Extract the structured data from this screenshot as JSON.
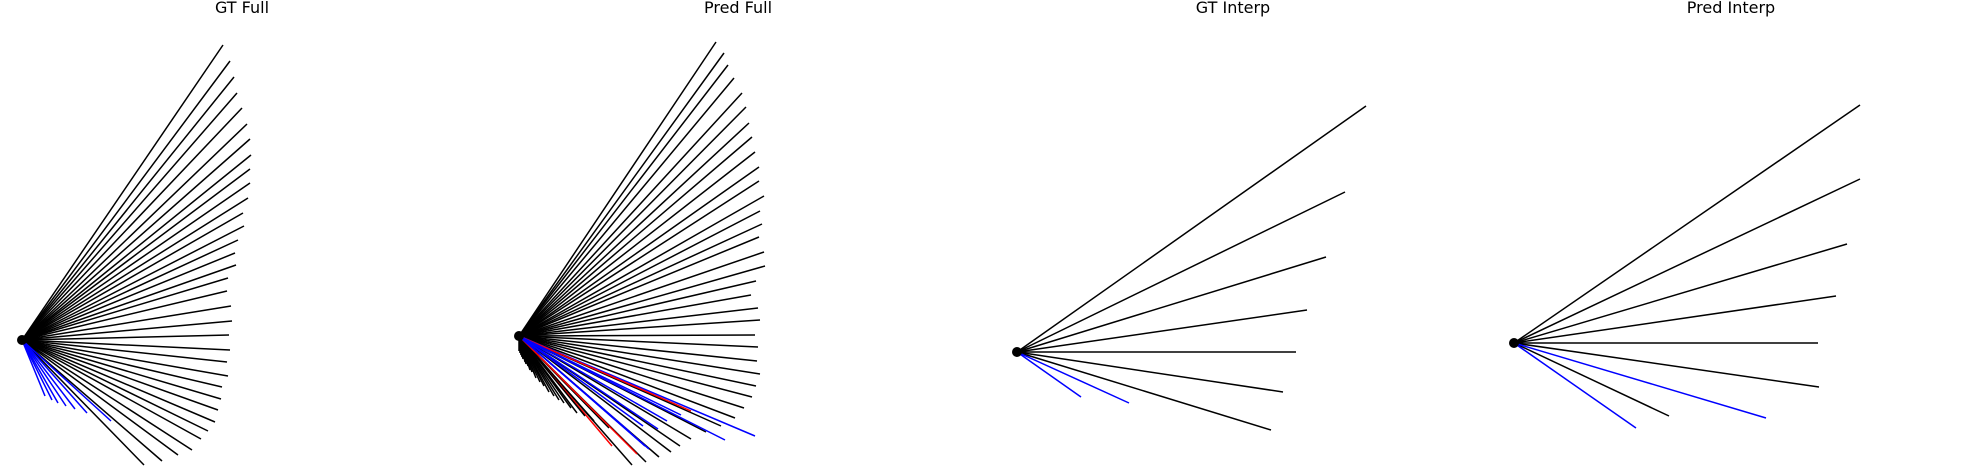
{
  "chart_data": [
    {
      "type": "line",
      "title": "GT Full",
      "origin": [
        0,
        0
      ],
      "rays": [
        {
          "end": [
            201,
            295
          ],
          "color": "black"
        },
        {
          "end": [
            208,
            279
          ],
          "color": "black"
        },
        {
          "end": [
            212,
            263
          ],
          "color": "black"
        },
        {
          "end": [
            215,
            247
          ],
          "color": "black"
        },
        {
          "end": [
            220,
            232
          ],
          "color": "black"
        },
        {
          "end": [
            225,
            216
          ],
          "color": "black"
        },
        {
          "end": [
            228,
            201
          ],
          "color": "black"
        },
        {
          "end": [
            229,
            185
          ],
          "color": "black"
        },
        {
          "end": [
            228,
            171
          ],
          "color": "black"
        },
        {
          "end": [
            228,
            157
          ],
          "color": "black"
        },
        {
          "end": [
            226,
            142
          ],
          "color": "black"
        },
        {
          "end": [
            221,
            127
          ],
          "color": "black"
        },
        {
          "end": [
            222,
            114
          ],
          "color": "black"
        },
        {
          "end": [
            216,
            100
          ],
          "color": "black"
        },
        {
          "end": [
            213,
            87
          ],
          "color": "black"
        },
        {
          "end": [
            214,
            75
          ],
          "color": "black"
        },
        {
          "end": [
            206,
            62
          ],
          "color": "black"
        },
        {
          "end": [
            205,
            49
          ],
          "color": "black"
        },
        {
          "end": [
            209,
            34
          ],
          "color": "black"
        },
        {
          "end": [
            210,
            19
          ],
          "color": "black"
        },
        {
          "end": [
            207,
            5
          ],
          "color": "black"
        },
        {
          "end": [
            208,
            -10
          ],
          "color": "black"
        },
        {
          "end": [
            205,
            -22
          ],
          "color": "black"
        },
        {
          "end": [
            206,
            -36
          ],
          "color": "black"
        },
        {
          "end": [
            200,
            -47
          ],
          "color": "black"
        },
        {
          "end": [
            199,
            -59
          ],
          "color": "black"
        },
        {
          "end": [
            196,
            -70
          ],
          "color": "black"
        },
        {
          "end": [
            193,
            -82
          ],
          "color": "black"
        },
        {
          "end": [
            186,
            -91
          ],
          "color": "black"
        },
        {
          "end": [
            179,
            -99
          ],
          "color": "black"
        },
        {
          "end": [
            170,
            -110
          ],
          "color": "black"
        },
        {
          "end": [
            156,
            -115
          ],
          "color": "black"
        },
        {
          "end": [
            140,
            -121
          ],
          "color": "black"
        },
        {
          "end": [
            122,
            -125
          ],
          "color": "black"
        },
        {
          "end": [
            89,
            -81
          ],
          "color": "blue"
        },
        {
          "end": [
            65,
            -73
          ],
          "color": "blue"
        },
        {
          "end": [
            53,
            -69
          ],
          "color": "blue"
        },
        {
          "end": [
            44,
            -66
          ],
          "color": "blue"
        },
        {
          "end": [
            36,
            -63
          ],
          "color": "blue"
        },
        {
          "end": [
            30,
            -60
          ],
          "color": "blue"
        },
        {
          "end": [
            23,
            -56
          ],
          "color": "blue"
        }
      ]
    },
    {
      "type": "line",
      "title": "Pred Full",
      "origin": [
        0,
        0
      ],
      "rays": [
        {
          "end": [
            197,
            294
          ],
          "color": "black"
        },
        {
          "end": [
            205,
            283
          ],
          "color": "black"
        },
        {
          "end": [
            209,
            271
          ],
          "color": "black"
        },
        {
          "end": [
            215,
            258
          ],
          "color": "black"
        },
        {
          "end": [
            223,
            243
          ],
          "color": "black"
        },
        {
          "end": [
            227,
            229
          ],
          "color": "black"
        },
        {
          "end": [
            230,
            213
          ],
          "color": "black"
        },
        {
          "end": [
            233,
            199
          ],
          "color": "black"
        },
        {
          "end": [
            236,
            184
          ],
          "color": "black"
        },
        {
          "end": [
            240,
            169
          ],
          "color": "black"
        },
        {
          "end": [
            240,
            155
          ],
          "color": "black"
        },
        {
          "end": [
            245,
            140
          ],
          "color": "black"
        },
        {
          "end": [
            241,
            125
          ],
          "color": "black"
        },
        {
          "end": [
            243,
            112
          ],
          "color": "black"
        },
        {
          "end": [
            240,
            99
          ],
          "color": "black"
        },
        {
          "end": [
            245,
            84
          ],
          "color": "black"
        },
        {
          "end": [
            246,
            70
          ],
          "color": "black"
        },
        {
          "end": [
            237,
            55
          ],
          "color": "black"
        },
        {
          "end": [
            232,
            41
          ],
          "color": "black"
        },
        {
          "end": [
            239,
            28
          ],
          "color": "black"
        },
        {
          "end": [
            241,
            16
          ],
          "color": "black"
        },
        {
          "end": [
            236,
            1
          ],
          "color": "black"
        },
        {
          "end": [
            239,
            -11
          ],
          "color": "black"
        },
        {
          "end": [
            238,
            -25
          ],
          "color": "black"
        },
        {
          "end": [
            241,
            -38
          ],
          "color": "black"
        },
        {
          "end": [
            237,
            -50
          ],
          "color": "black"
        },
        {
          "end": [
            233,
            -61
          ],
          "color": "black"
        },
        {
          "end": [
            225,
            -72
          ],
          "color": "black"
        },
        {
          "end": [
            216,
            -82
          ],
          "color": "black"
        },
        {
          "end": [
            202,
            -90
          ],
          "color": "black"
        },
        {
          "end": [
            187,
            -96
          ],
          "color": "black"
        },
        {
          "end": [
            172,
            -103
          ],
          "color": "black"
        },
        {
          "end": [
            161,
            -110
          ],
          "color": "black"
        },
        {
          "end": [
            152,
            -116
          ],
          "color": "black"
        },
        {
          "end": [
            140,
            -121
          ],
          "color": "black"
        },
        {
          "end": [
            127,
            -126
          ],
          "color": "black"
        },
        {
          "end": [
            113,
            -129
          ],
          "color": "black"
        },
        {
          "end": [
            93,
            -110
          ],
          "color": "red"
        },
        {
          "end": [
            90,
            -92
          ],
          "color": "black"
        },
        {
          "end": [
            75,
            -85
          ],
          "color": "black"
        },
        {
          "end": [
            66,
            -80
          ],
          "color": "black"
        },
        {
          "end": [
            58,
            -77
          ],
          "color": "black"
        },
        {
          "end": [
            52,
            -72
          ],
          "color": "black"
        },
        {
          "end": [
            45,
            -67
          ],
          "color": "black"
        },
        {
          "end": [
            40,
            -64
          ],
          "color": "black"
        },
        {
          "end": [
            35,
            -60
          ],
          "color": "black"
        },
        {
          "end": [
            30,
            -56
          ],
          "color": "black"
        },
        {
          "end": [
            25,
            -50
          ],
          "color": "black"
        },
        {
          "end": [
            21,
            -46
          ],
          "color": "black"
        },
        {
          "end": [
            17,
            -42
          ],
          "color": "black"
        },
        {
          "end": [
            16,
            -39
          ],
          "color": "black"
        },
        {
          "end": [
            13,
            -36
          ],
          "color": "black"
        },
        {
          "end": [
            11,
            -34
          ],
          "color": "black"
        },
        {
          "end": [
            9,
            -30
          ],
          "color": "black"
        },
        {
          "end": [
            7,
            -28
          ],
          "color": "black"
        },
        {
          "end": [
            6,
            -26
          ],
          "color": "black"
        },
        {
          "end": [
            4,
            -23
          ],
          "color": "black"
        },
        {
          "end": [
            3,
            -21
          ],
          "color": "black"
        },
        {
          "end": [
            2,
            -19
          ],
          "color": "black"
        },
        {
          "end": [
            1,
            -17
          ],
          "color": "black"
        },
        {
          "end": [
            0,
            -15
          ],
          "color": "black"
        },
        {
          "end": [
            236,
            -100
          ],
          "color": "blue"
        },
        {
          "end": [
            206,
            -104
          ],
          "color": "blue"
        },
        {
          "end": [
            172,
            -75
          ],
          "color": "red"
        },
        {
          "end": [
            130,
            -113
          ],
          "color": "blue"
        },
        {
          "end": [
            118,
            -118
          ],
          "color": "red"
        },
        {
          "end": [
            126,
            -110
          ],
          "color": "blue"
        },
        {
          "end": [
            111,
            -96
          ],
          "color": "blue"
        },
        {
          "end": [
            139,
            -93
          ],
          "color": "blue"
        },
        {
          "end": [
            124,
            -90
          ],
          "color": "blue"
        },
        {
          "end": [
            148,
            -85
          ],
          "color": "blue"
        },
        {
          "end": [
            162,
            -79
          ],
          "color": "blue"
        }
      ]
    },
    {
      "type": "line",
      "title": "GT Interp",
      "origin": [
        0,
        0
      ],
      "rays": [
        {
          "end": [
            349,
            246
          ],
          "color": "black"
        },
        {
          "end": [
            328,
            160
          ],
          "color": "black"
        },
        {
          "end": [
            309,
            95
          ],
          "color": "black"
        },
        {
          "end": [
            290,
            42
          ],
          "color": "black"
        },
        {
          "end": [
            279,
            0
          ],
          "color": "black"
        },
        {
          "end": [
            266,
            -40
          ],
          "color": "black"
        },
        {
          "end": [
            254,
            -78
          ],
          "color": "black"
        },
        {
          "end": [
            112,
            -51
          ],
          "color": "blue"
        },
        {
          "end": [
            64,
            -45
          ],
          "color": "blue"
        }
      ]
    },
    {
      "type": "line",
      "title": "Pred Interp",
      "origin": [
        0,
        0
      ],
      "rays": [
        {
          "end": [
            346,
            238
          ],
          "color": "black"
        },
        {
          "end": [
            346,
            164
          ],
          "color": "black"
        },
        {
          "end": [
            333,
            99
          ],
          "color": "black"
        },
        {
          "end": [
            322,
            47
          ],
          "color": "black"
        },
        {
          "end": [
            304,
            0
          ],
          "color": "black"
        },
        {
          "end": [
            305,
            -44
          ],
          "color": "black"
        },
        {
          "end": [
            155,
            -73
          ],
          "color": "black"
        },
        {
          "end": [
            122,
            -85
          ],
          "color": "blue"
        },
        {
          "end": [
            252,
            -75
          ],
          "color": "blue"
        }
      ]
    }
  ]
}
